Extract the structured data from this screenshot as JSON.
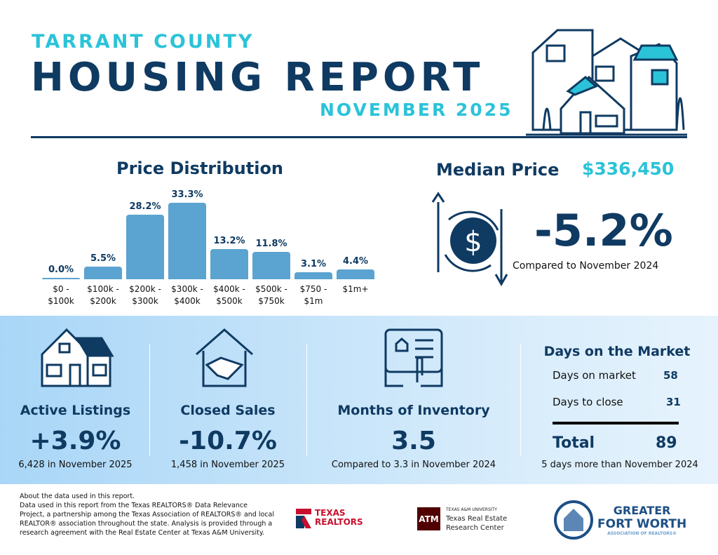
{
  "header": {
    "county": "TARRANT COUNTY",
    "title": "HOUSING REPORT",
    "period": "NOVEMBER 2025"
  },
  "price_distribution": {
    "title": "Price Distribution"
  },
  "chart_data": {
    "type": "bar",
    "title": "Price Distribution",
    "categories": [
      "$0 - $100k",
      "$100k - $200k",
      "$200k - $300k",
      "$300k - $400k",
      "$400k - $500k",
      "$500k - $750k",
      "$750 - $1m",
      "$1m+"
    ],
    "category_lines": [
      [
        "$0 -",
        "$100k"
      ],
      [
        "$100k -",
        "$200k"
      ],
      [
        "$200k -",
        "$300k"
      ],
      [
        "$300k -",
        "$400k"
      ],
      [
        "$400k -",
        "$500k"
      ],
      [
        "$500k -",
        "$750k"
      ],
      [
        "$750 -",
        "$1m"
      ],
      [
        "$1m+",
        ""
      ]
    ],
    "values": [
      0.0,
      5.5,
      28.2,
      33.3,
      13.2,
      11.8,
      3.1,
      4.4
    ],
    "labels": [
      "0.0%",
      "5.5%",
      "28.2%",
      "33.3%",
      "13.2%",
      "11.8%",
      "3.1%",
      "4.4%"
    ],
    "bar_color": "#5ba3d0"
  },
  "median": {
    "label": "Median Price",
    "value": "$336,450",
    "change": "-5.2%",
    "compare": "Compared to November 2024"
  },
  "stats": [
    {
      "title": "Active Listings",
      "value": "+3.9%",
      "sub": "6,428 in November 2025"
    },
    {
      "title": "Closed Sales",
      "value": "-10.7%",
      "sub": "1,458 in November 2025"
    },
    {
      "title": "Months of Inventory",
      "value": "3.5",
      "sub": "Compared to 3.3 in November 2024"
    }
  ],
  "dom": {
    "title": "Days on the Market",
    "rows": [
      {
        "label": "Days on market",
        "value": "58"
      },
      {
        "label": "Days to close",
        "value": "31"
      }
    ],
    "total_label": "Total",
    "total_value": "89",
    "sub": "5 days more than November 2024"
  },
  "footer": {
    "lines": [
      "About the data used in this report.",
      "Data used in this report from the Texas REALTORS® Data Relevance",
      "Project, a partnership among the Texas Association of REALTORS® and local",
      "REALTOR® association throughout the state. Analysis is provided through a",
      "research agreement with the Real Estate Center at Texas A&M University."
    ],
    "logo1": [
      "TEXAS",
      "REALTORS"
    ],
    "logo2": {
      "small": "TEXAS A&M UNIVERSITY",
      "line1": "Texas Real Estate",
      "line2": "Research Center"
    },
    "logo3": {
      "line1": "GREATER",
      "line2": "FORT WORTH",
      "line3": "ASSOCIATION OF REALTORS®"
    }
  },
  "colors": {
    "navy": "#0f3a62",
    "teal": "#2bc3d8",
    "band": "#a9d6f7"
  }
}
